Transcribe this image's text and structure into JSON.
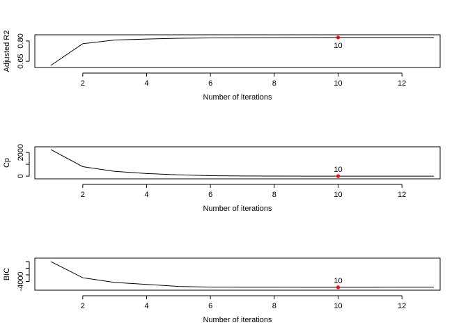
{
  "chart_data": [
    {
      "type": "line",
      "xlabel": "Number of iterations",
      "ylabel": "Adjusted R2",
      "x": [
        1,
        2,
        3,
        4,
        5,
        6,
        7,
        8,
        9,
        10,
        11,
        12,
        13
      ],
      "y": [
        0.62,
        0.78,
        0.807,
        0.814,
        0.82,
        0.8225,
        0.8235,
        0.8245,
        0.825,
        0.8255,
        0.8255,
        0.8255,
        0.8255
      ],
      "xlim": [
        1,
        13
      ],
      "ylim": [
        0.62,
        0.83
      ],
      "xticks": [
        2,
        4,
        6,
        8,
        10,
        12
      ],
      "yticks": [
        0.65,
        0.8
      ],
      "ytick_labels": [
        "0.65",
        "0.80"
      ],
      "selected": {
        "x": 10,
        "label": "10",
        "color": "#ff0000",
        "label_pos": "below"
      },
      "grid": false
    },
    {
      "type": "line",
      "xlabel": "Number of iterations",
      "ylabel": "Cp",
      "x": [
        1,
        2,
        3,
        4,
        5,
        6,
        7,
        8,
        9,
        10,
        11,
        12,
        13
      ],
      "y": [
        2250,
        800,
        400,
        220,
        110,
        40,
        12,
        6,
        3,
        2,
        3,
        4,
        5
      ],
      "xlim": [
        1,
        13
      ],
      "ylim": [
        -50,
        2300
      ],
      "xticks": [
        2,
        4,
        6,
        8,
        10,
        12
      ],
      "yticks": [
        0,
        1000,
        2000
      ],
      "ytick_labels": [
        "0",
        "",
        "2000"
      ],
      "selected": {
        "x": 10,
        "label": "10",
        "color": "#ff0000",
        "label_pos": "above"
      },
      "grid": false
    },
    {
      "type": "line",
      "xlabel": "Number of iterations",
      "ylabel": "BIC",
      "x": [
        1,
        2,
        3,
        4,
        5,
        6,
        7,
        8,
        9,
        10,
        11,
        12,
        13
      ],
      "y": [
        -1000,
        -3450,
        -4150,
        -4450,
        -4750,
        -4850,
        -4870,
        -4875,
        -4880,
        -4885,
        -4880,
        -4878,
        -4875
      ],
      "xlim": [
        1,
        13
      ],
      "ylim": [
        -5000,
        -800
      ],
      "xticks": [
        2,
        4,
        6,
        8,
        10,
        12
      ],
      "yticks": [
        -4000,
        -3000,
        -2000,
        -1000
      ],
      "ytick_labels": [
        "-4000",
        "",
        "",
        ""
      ],
      "selected": {
        "x": 10,
        "label": "10",
        "color": "#ff0000",
        "label_pos": "above"
      },
      "grid": false
    }
  ]
}
